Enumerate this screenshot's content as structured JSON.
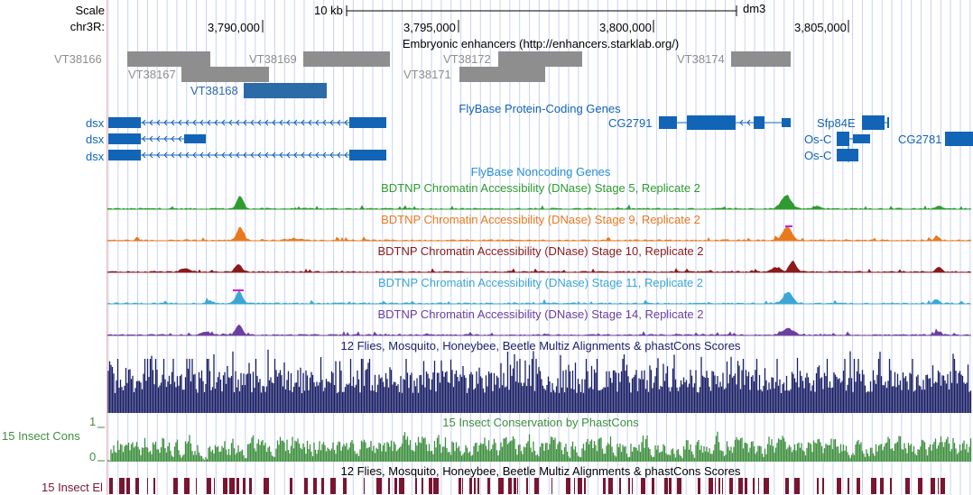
{
  "ruler": {
    "scale_label": "Scale",
    "chrom_label": "chr3R:",
    "scale_bar_text": "10 kb",
    "assembly": "dm3",
    "positions": [
      "3,790,000",
      "3,795,000",
      "3,800,000",
      "3,805,000"
    ]
  },
  "colors": {
    "grid": "#c9d2f5",
    "gray": "#8e8e8e",
    "gene_blue": "#1264b6",
    "enhancer_selected": "#2c6aa8",
    "noncoding_blue": "#2a8fd8",
    "stage5": "#2f9b2f",
    "stage9": "#e87a1e",
    "stage10": "#8b1a1a",
    "stage11": "#3aa7d6",
    "stage14": "#6b3fa0",
    "multiz": "#1a1f66",
    "cons": "#3f8f3f",
    "elements": "#7a1530",
    "saturation": "#d21dd2"
  },
  "tracks": {
    "enhancers": {
      "title": "Embryonic enhancers (http://enhancers.starklab.org/)",
      "items": [
        {
          "name": "VT38166"
        },
        {
          "name": "VT38167"
        },
        {
          "name": "VT38168"
        },
        {
          "name": "VT38169"
        },
        {
          "name": "VT38171"
        },
        {
          "name": "VT38172"
        },
        {
          "name": "VT38174"
        }
      ]
    },
    "genes": {
      "title": "FlyBase Protein-Coding Genes",
      "left_labels": [
        "dsx",
        "dsx",
        "dsx"
      ],
      "cg2791": "CG2791",
      "sfp84e": "Sfp84E",
      "osc1": "Os-C",
      "osc2": "Os-C",
      "cg2781": "CG2781"
    },
    "noncoding": {
      "title": "FlyBase Noncoding Genes"
    },
    "dnase": [
      {
        "title": "BDTNP Chromatin Accessibility (DNase) Stage 5, Replicate 2"
      },
      {
        "title": "BDTNP Chromatin Accessibility (DNase) Stage 9, Replicate 2"
      },
      {
        "title": "BDTNP Chromatin Accessibility (DNase) Stage 10, Replicate 2"
      },
      {
        "title": "BDTNP Chromatin Accessibility (DNase) Stage 11, Replicate 2"
      },
      {
        "title": "BDTNP Chromatin Accessibility (DNase) Stage 14, Replicate 2"
      }
    ],
    "multiz": {
      "title": "12 Flies, Mosquito, Honeybee, Beetle Multiz Alignments & phastCons Scores"
    },
    "phastcons": {
      "title": "15 Insect Conservation by PhastCons",
      "side_label": "15 Insect Cons",
      "max": "1",
      "min": "0"
    },
    "elements": {
      "title": "12 Flies, Mosquito, Honeybee, Beetle Multiz Alignments & phastCons Scores",
      "side_label": "15 Insect El"
    }
  }
}
